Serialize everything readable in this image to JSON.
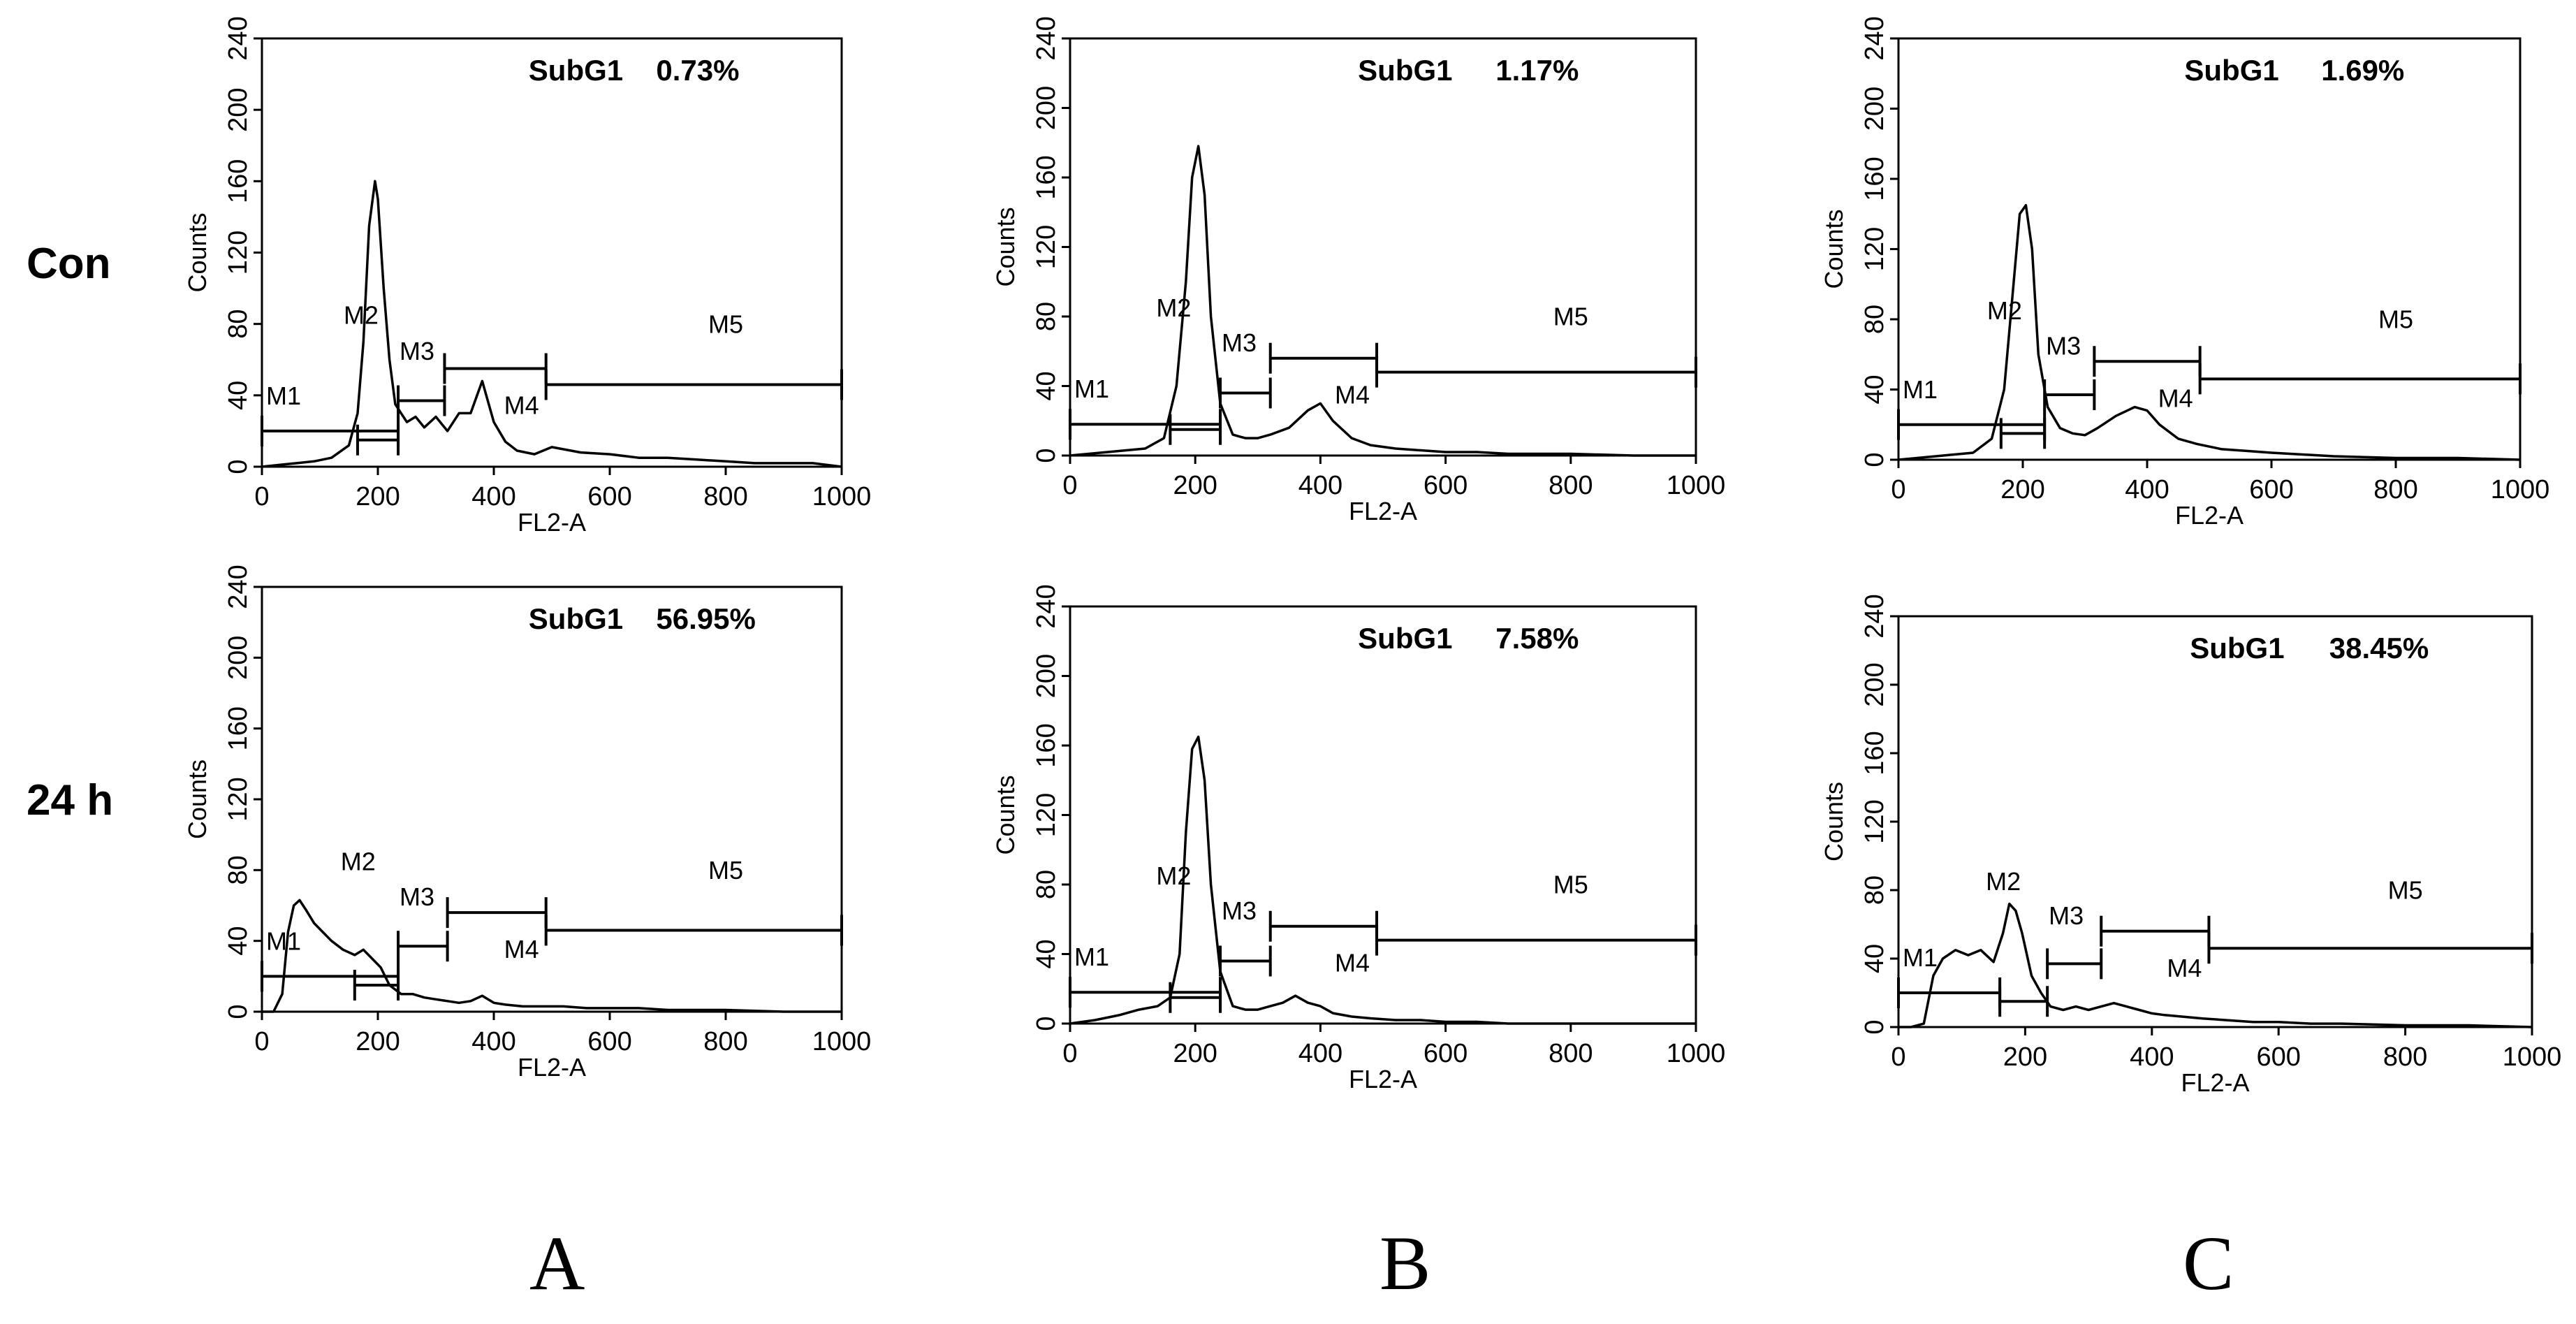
{
  "figure": {
    "row_labels": [
      "Con",
      "24 h"
    ],
    "column_labels": [
      "A",
      "B",
      "C"
    ]
  },
  "chart_data": [
    {
      "type": "histogram",
      "id": "A-con",
      "row": "Con",
      "column": "A",
      "annotation_label": "SubG1",
      "annotation_value": "0.73%",
      "xlabel": "FL2-A",
      "ylabel": "Counts",
      "xlim": [
        0,
        1000
      ],
      "ylim": [
        0,
        240
      ],
      "xticks": [
        0,
        200,
        400,
        600,
        800,
        1000
      ],
      "yticks": [
        0,
        40,
        80,
        120,
        160,
        200,
        240
      ],
      "x": [
        0,
        30,
        60,
        90,
        120,
        150,
        165,
        175,
        185,
        195,
        200,
        210,
        220,
        230,
        240,
        250,
        265,
        280,
        300,
        320,
        340,
        360,
        380,
        400,
        420,
        440,
        470,
        500,
        550,
        600,
        650,
        700,
        750,
        800,
        850,
        900,
        950,
        1000
      ],
      "y": [
        0,
        1,
        2,
        3,
        5,
        12,
        30,
        70,
        135,
        160,
        150,
        100,
        60,
        35,
        30,
        25,
        28,
        22,
        28,
        20,
        30,
        30,
        48,
        25,
        14,
        9,
        7,
        11,
        8,
        7,
        5,
        5,
        4,
        3,
        2,
        2,
        2,
        0
      ],
      "markers": [
        {
          "name": "M1",
          "range": [
            0,
            235
          ],
          "y": 20
        },
        {
          "name": "M2",
          "range": [
            165,
            235
          ],
          "y": 15
        },
        {
          "name": "M3",
          "range": [
            235,
            315
          ],
          "y": 37
        },
        {
          "name": "M4",
          "range": [
            315,
            490
          ],
          "y": 55
        },
        {
          "name": "M5",
          "range": [
            490,
            1000
          ],
          "y": 46
        }
      ]
    },
    {
      "type": "histogram",
      "id": "B-con",
      "row": "Con",
      "column": "B",
      "annotation_label": "SubG1",
      "annotation_value": "1.17%",
      "xlabel": "FL2-A",
      "ylabel": "Counts",
      "xlim": [
        0,
        1000
      ],
      "ylim": [
        0,
        240
      ],
      "xticks": [
        0,
        200,
        400,
        600,
        800,
        1000
      ],
      "yticks": [
        0,
        40,
        80,
        120,
        160,
        200,
        240
      ],
      "x": [
        0,
        30,
        60,
        90,
        120,
        150,
        170,
        185,
        195,
        205,
        215,
        225,
        240,
        260,
        280,
        300,
        320,
        350,
        380,
        400,
        420,
        450,
        480,
        520,
        560,
        600,
        650,
        700,
        800,
        900,
        1000
      ],
      "y": [
        0,
        1,
        2,
        3,
        4,
        10,
        40,
        100,
        160,
        178,
        150,
        80,
        30,
        12,
        10,
        10,
        12,
        16,
        26,
        30,
        20,
        10,
        6,
        4,
        3,
        2,
        2,
        1,
        1,
        0,
        0
      ],
      "markers": [
        {
          "name": "M1",
          "range": [
            0,
            240
          ],
          "y": 18
        },
        {
          "name": "M2",
          "range": [
            160,
            240
          ],
          "y": 15
        },
        {
          "name": "M3",
          "range": [
            240,
            320
          ],
          "y": 36
        },
        {
          "name": "M4",
          "range": [
            320,
            490
          ],
          "y": 56
        },
        {
          "name": "M5",
          "range": [
            490,
            1000
          ],
          "y": 48
        }
      ]
    },
    {
      "type": "histogram",
      "id": "C-con",
      "row": "Con",
      "column": "C",
      "annotation_label": "SubG1",
      "annotation_value": "1.69%",
      "xlabel": "FL2-A",
      "ylabel": "Counts",
      "xlim": [
        0,
        1000
      ],
      "ylim": [
        0,
        240
      ],
      "xticks": [
        0,
        200,
        400,
        600,
        800,
        1000
      ],
      "yticks": [
        0,
        40,
        80,
        120,
        160,
        200,
        240
      ],
      "x": [
        0,
        30,
        60,
        90,
        120,
        150,
        170,
        185,
        195,
        205,
        215,
        225,
        240,
        260,
        280,
        300,
        320,
        350,
        380,
        400,
        420,
        450,
        480,
        520,
        560,
        600,
        650,
        700,
        800,
        900,
        1000
      ],
      "y": [
        0,
        1,
        2,
        3,
        4,
        12,
        40,
        100,
        140,
        145,
        120,
        60,
        30,
        18,
        15,
        14,
        18,
        25,
        30,
        28,
        20,
        12,
        9,
        6,
        5,
        4,
        3,
        2,
        1,
        1,
        0
      ],
      "markers": [
        {
          "name": "M1",
          "range": [
            0,
            235
          ],
          "y": 20
        },
        {
          "name": "M2",
          "range": [
            165,
            235
          ],
          "y": 15
        },
        {
          "name": "M3",
          "range": [
            235,
            315
          ],
          "y": 37
        },
        {
          "name": "M4",
          "range": [
            315,
            485
          ],
          "y": 56
        },
        {
          "name": "M5",
          "range": [
            485,
            1000
          ],
          "y": 46
        }
      ]
    },
    {
      "type": "histogram",
      "id": "A-24h",
      "row": "24 h",
      "column": "A",
      "annotation_label": "SubG1",
      "annotation_value": "56.95%",
      "xlabel": "FL2-A",
      "ylabel": "Counts",
      "xlim": [
        0,
        1000
      ],
      "ylim": [
        0,
        240
      ],
      "xticks": [
        0,
        200,
        400,
        600,
        800,
        1000
      ],
      "yticks": [
        0,
        40,
        80,
        120,
        160,
        200,
        240
      ],
      "x": [
        0,
        20,
        35,
        45,
        55,
        65,
        75,
        90,
        105,
        120,
        140,
        160,
        175,
        190,
        205,
        220,
        240,
        260,
        280,
        300,
        320,
        340,
        360,
        380,
        400,
        420,
        450,
        480,
        520,
        560,
        600,
        650,
        700,
        800,
        900,
        1000
      ],
      "y": [
        0,
        0,
        10,
        45,
        60,
        63,
        58,
        50,
        45,
        40,
        35,
        32,
        35,
        30,
        25,
        15,
        10,
        10,
        8,
        7,
        6,
        5,
        6,
        9,
        5,
        4,
        3,
        3,
        3,
        2,
        2,
        2,
        1,
        1,
        0,
        0
      ],
      "markers": [
        {
          "name": "M1",
          "range": [
            0,
            235
          ],
          "y": 20
        },
        {
          "name": "M2",
          "range": [
            160,
            235
          ],
          "y": 15
        },
        {
          "name": "M3",
          "range": [
            235,
            320
          ],
          "y": 37
        },
        {
          "name": "M4",
          "range": [
            320,
            490
          ],
          "y": 56
        },
        {
          "name": "M5",
          "range": [
            490,
            1000
          ],
          "y": 46
        }
      ]
    },
    {
      "type": "histogram",
      "id": "B-24h",
      "row": "24 h",
      "column": "B",
      "annotation_label": "SubG1",
      "annotation_value": "7.58%",
      "xlabel": "FL2-A",
      "ylabel": "Counts",
      "xlim": [
        0,
        1000
      ],
      "ylim": [
        0,
        240
      ],
      "xticks": [
        0,
        200,
        400,
        600,
        800,
        1000
      ],
      "yticks": [
        0,
        40,
        80,
        120,
        160,
        200,
        240
      ],
      "x": [
        0,
        40,
        80,
        110,
        140,
        160,
        175,
        185,
        195,
        205,
        215,
        225,
        240,
        260,
        280,
        300,
        320,
        340,
        360,
        380,
        400,
        420,
        450,
        480,
        520,
        560,
        600,
        650,
        700,
        800,
        900,
        1000
      ],
      "y": [
        0,
        2,
        5,
        8,
        10,
        15,
        40,
        110,
        158,
        165,
        140,
        80,
        30,
        10,
        8,
        8,
        10,
        12,
        16,
        12,
        10,
        6,
        4,
        3,
        2,
        2,
        1,
        1,
        0,
        0,
        0,
        0
      ],
      "markers": [
        {
          "name": "M1",
          "range": [
            0,
            240
          ],
          "y": 18
        },
        {
          "name": "M2",
          "range": [
            160,
            240
          ],
          "y": 15
        },
        {
          "name": "M3",
          "range": [
            240,
            320
          ],
          "y": 36
        },
        {
          "name": "M4",
          "range": [
            320,
            490
          ],
          "y": 56
        },
        {
          "name": "M5",
          "range": [
            490,
            1000
          ],
          "y": 48
        }
      ]
    },
    {
      "type": "histogram",
      "id": "C-24h",
      "row": "24 h",
      "column": "C",
      "annotation_label": "SubG1",
      "annotation_value": "38.45%",
      "xlabel": "FL2-A",
      "ylabel": "Counts",
      "xlim": [
        0,
        1000
      ],
      "ylim": [
        0,
        240
      ],
      "xticks": [
        0,
        200,
        400,
        600,
        800,
        1000
      ],
      "yticks": [
        0,
        40,
        80,
        120,
        160,
        200,
        240
      ],
      "x": [
        0,
        20,
        40,
        55,
        70,
        90,
        110,
        130,
        150,
        165,
        175,
        185,
        195,
        210,
        225,
        240,
        260,
        280,
        300,
        320,
        340,
        360,
        380,
        400,
        420,
        450,
        480,
        520,
        560,
        600,
        650,
        700,
        800,
        900,
        1000
      ],
      "y": [
        0,
        0,
        2,
        30,
        40,
        45,
        42,
        45,
        38,
        55,
        72,
        68,
        55,
        30,
        20,
        12,
        10,
        12,
        10,
        12,
        14,
        12,
        10,
        8,
        7,
        6,
        5,
        4,
        3,
        3,
        2,
        2,
        1,
        1,
        0
      ],
      "markers": [
        {
          "name": "M1",
          "range": [
            0,
            160
          ],
          "y": 20
        },
        {
          "name": "M2",
          "range": [
            160,
            235
          ],
          "y": 15
        },
        {
          "name": "M3",
          "range": [
            235,
            320
          ],
          "y": 37
        },
        {
          "name": "M4",
          "range": [
            320,
            490
          ],
          "y": 56
        },
        {
          "name": "M5",
          "range": [
            490,
            1000
          ],
          "y": 46
        }
      ]
    }
  ]
}
